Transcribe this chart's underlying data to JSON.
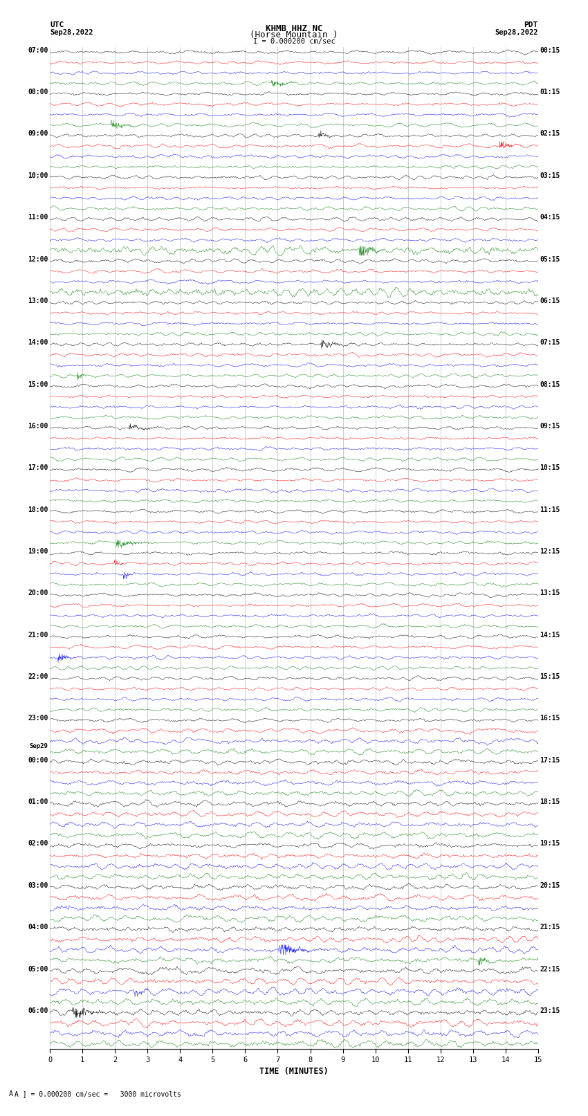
{
  "title_line1": "KHMB HHZ NC",
  "title_line2": "(Horse Mountain )",
  "title_line3": "I = 0.000200 cm/sec",
  "utc_label": "UTC",
  "utc_date": "Sep28,2022",
  "pdt_label": "PDT",
  "pdt_date": "Sep28,2022",
  "xlabel": "TIME (MINUTES)",
  "footer": "A ] = 0.000200 cm/sec =   3000 microvolts",
  "trace_colors": [
    "black",
    "red",
    "blue",
    "green"
  ],
  "minutes_per_row": 15,
  "figwidth": 8.5,
  "figheight": 16.13,
  "dpi": 100,
  "bg_color": "white",
  "left_labels": [
    {
      "text": "07:00",
      "row": 0
    },
    {
      "text": "08:00",
      "row": 4
    },
    {
      "text": "09:00",
      "row": 8
    },
    {
      "text": "10:00",
      "row": 12
    },
    {
      "text": "11:00",
      "row": 16
    },
    {
      "text": "12:00",
      "row": 20
    },
    {
      "text": "13:00",
      "row": 24
    },
    {
      "text": "14:00",
      "row": 28
    },
    {
      "text": "15:00",
      "row": 32
    },
    {
      "text": "16:00",
      "row": 36
    },
    {
      "text": "17:00",
      "row": 40
    },
    {
      "text": "18:00",
      "row": 44
    },
    {
      "text": "19:00",
      "row": 48
    },
    {
      "text": "20:00",
      "row": 52
    },
    {
      "text": "21:00",
      "row": 56
    },
    {
      "text": "22:00",
      "row": 60
    },
    {
      "text": "23:00",
      "row": 64
    },
    {
      "text": "Sep29",
      "row": 67,
      "extra": true
    },
    {
      "text": "00:00",
      "row": 68
    },
    {
      "text": "01:00",
      "row": 72
    },
    {
      "text": "02:00",
      "row": 76
    },
    {
      "text": "03:00",
      "row": 80
    },
    {
      "text": "04:00",
      "row": 84
    },
    {
      "text": "05:00",
      "row": 88
    },
    {
      "text": "06:00",
      "row": 92
    }
  ],
  "right_labels": [
    {
      "text": "00:15",
      "row": 0
    },
    {
      "text": "01:15",
      "row": 4
    },
    {
      "text": "02:15",
      "row": 8
    },
    {
      "text": "03:15",
      "row": 12
    },
    {
      "text": "04:15",
      "row": 16
    },
    {
      "text": "05:15",
      "row": 20
    },
    {
      "text": "06:15",
      "row": 24
    },
    {
      "text": "07:15",
      "row": 28
    },
    {
      "text": "08:15",
      "row": 32
    },
    {
      "text": "09:15",
      "row": 36
    },
    {
      "text": "10:15",
      "row": 40
    },
    {
      "text": "11:15",
      "row": 44
    },
    {
      "text": "12:15",
      "row": 48
    },
    {
      "text": "13:15",
      "row": 52
    },
    {
      "text": "14:15",
      "row": 56
    },
    {
      "text": "15:15",
      "row": 60
    },
    {
      "text": "16:15",
      "row": 64
    },
    {
      "text": "17:15",
      "row": 68
    },
    {
      "text": "18:15",
      "row": 72
    },
    {
      "text": "19:15",
      "row": 76
    },
    {
      "text": "20:15",
      "row": 80
    },
    {
      "text": "21:15",
      "row": 84
    },
    {
      "text": "22:15",
      "row": 88
    },
    {
      "text": "23:15",
      "row": 92
    }
  ],
  "num_trace_rows": 96,
  "traces_per_hour": 4,
  "noise_seeds": [
    42
  ],
  "amplitude_scale": 0.38,
  "high_freq_components": 8
}
